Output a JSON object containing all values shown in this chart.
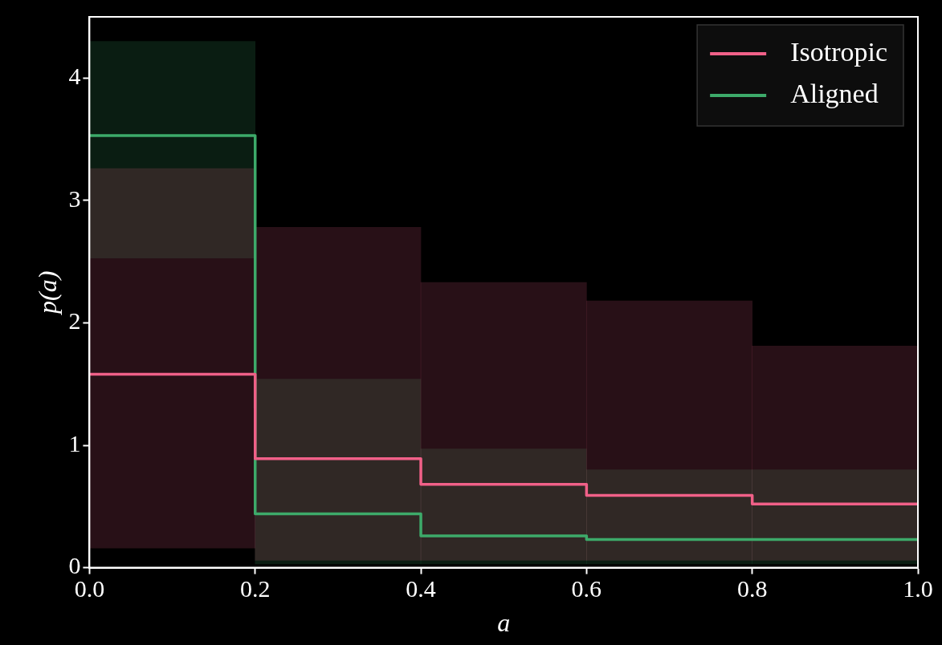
{
  "chart_data": {
    "type": "histogram",
    "xlabel": "a",
    "ylabel": "p(a)",
    "bins": [
      0,
      0.2,
      0.4,
      0.6,
      0.8,
      1.0
    ],
    "series": [
      {
        "name": "Isotropic",
        "color": "#f06088",
        "values": [
          1.58,
          0.89,
          0.68,
          0.59,
          0.52
        ]
      },
      {
        "name": "Aligned",
        "color": "#3daa6a",
        "values": [
          3.53,
          0.44,
          0.26,
          0.23,
          0.23
        ]
      },
      {
        "type": "bar",
        "color": "#f06088",
        "x": [
          0.1,
          0.3,
          0.5,
          0.7,
          0.9
        ],
        "base": [
          0.16,
          0.06,
          0.06,
          0.06,
          0.06
        ],
        "values": [
          3.1,
          2.72,
          2.27,
          2.12,
          1.75
        ]
      },
      {
        "type": "bar",
        "color": "#3daa6a",
        "x": [
          0.1,
          0.3,
          0.5,
          0.7,
          0.9
        ],
        "base": [
          2.53,
          0.03,
          0.03,
          0.03,
          0.03
        ],
        "values": [
          1.77,
          1.51,
          0.94,
          0.77,
          0.77
        ]
      }
    ],
    "xlim": [
      0,
      1
    ],
    "ylim": [
      0,
      4.5
    ],
    "xticks": [
      {
        "value": 0,
        "label": "0.0"
      },
      0.2,
      0.4,
      0.6,
      0.8,
      {
        "value": 1,
        "label": "1.0"
      }
    ],
    "yticks": [
      0,
      1,
      2,
      3,
      4
    ],
    "grid": false,
    "legend": "top right"
  }
}
